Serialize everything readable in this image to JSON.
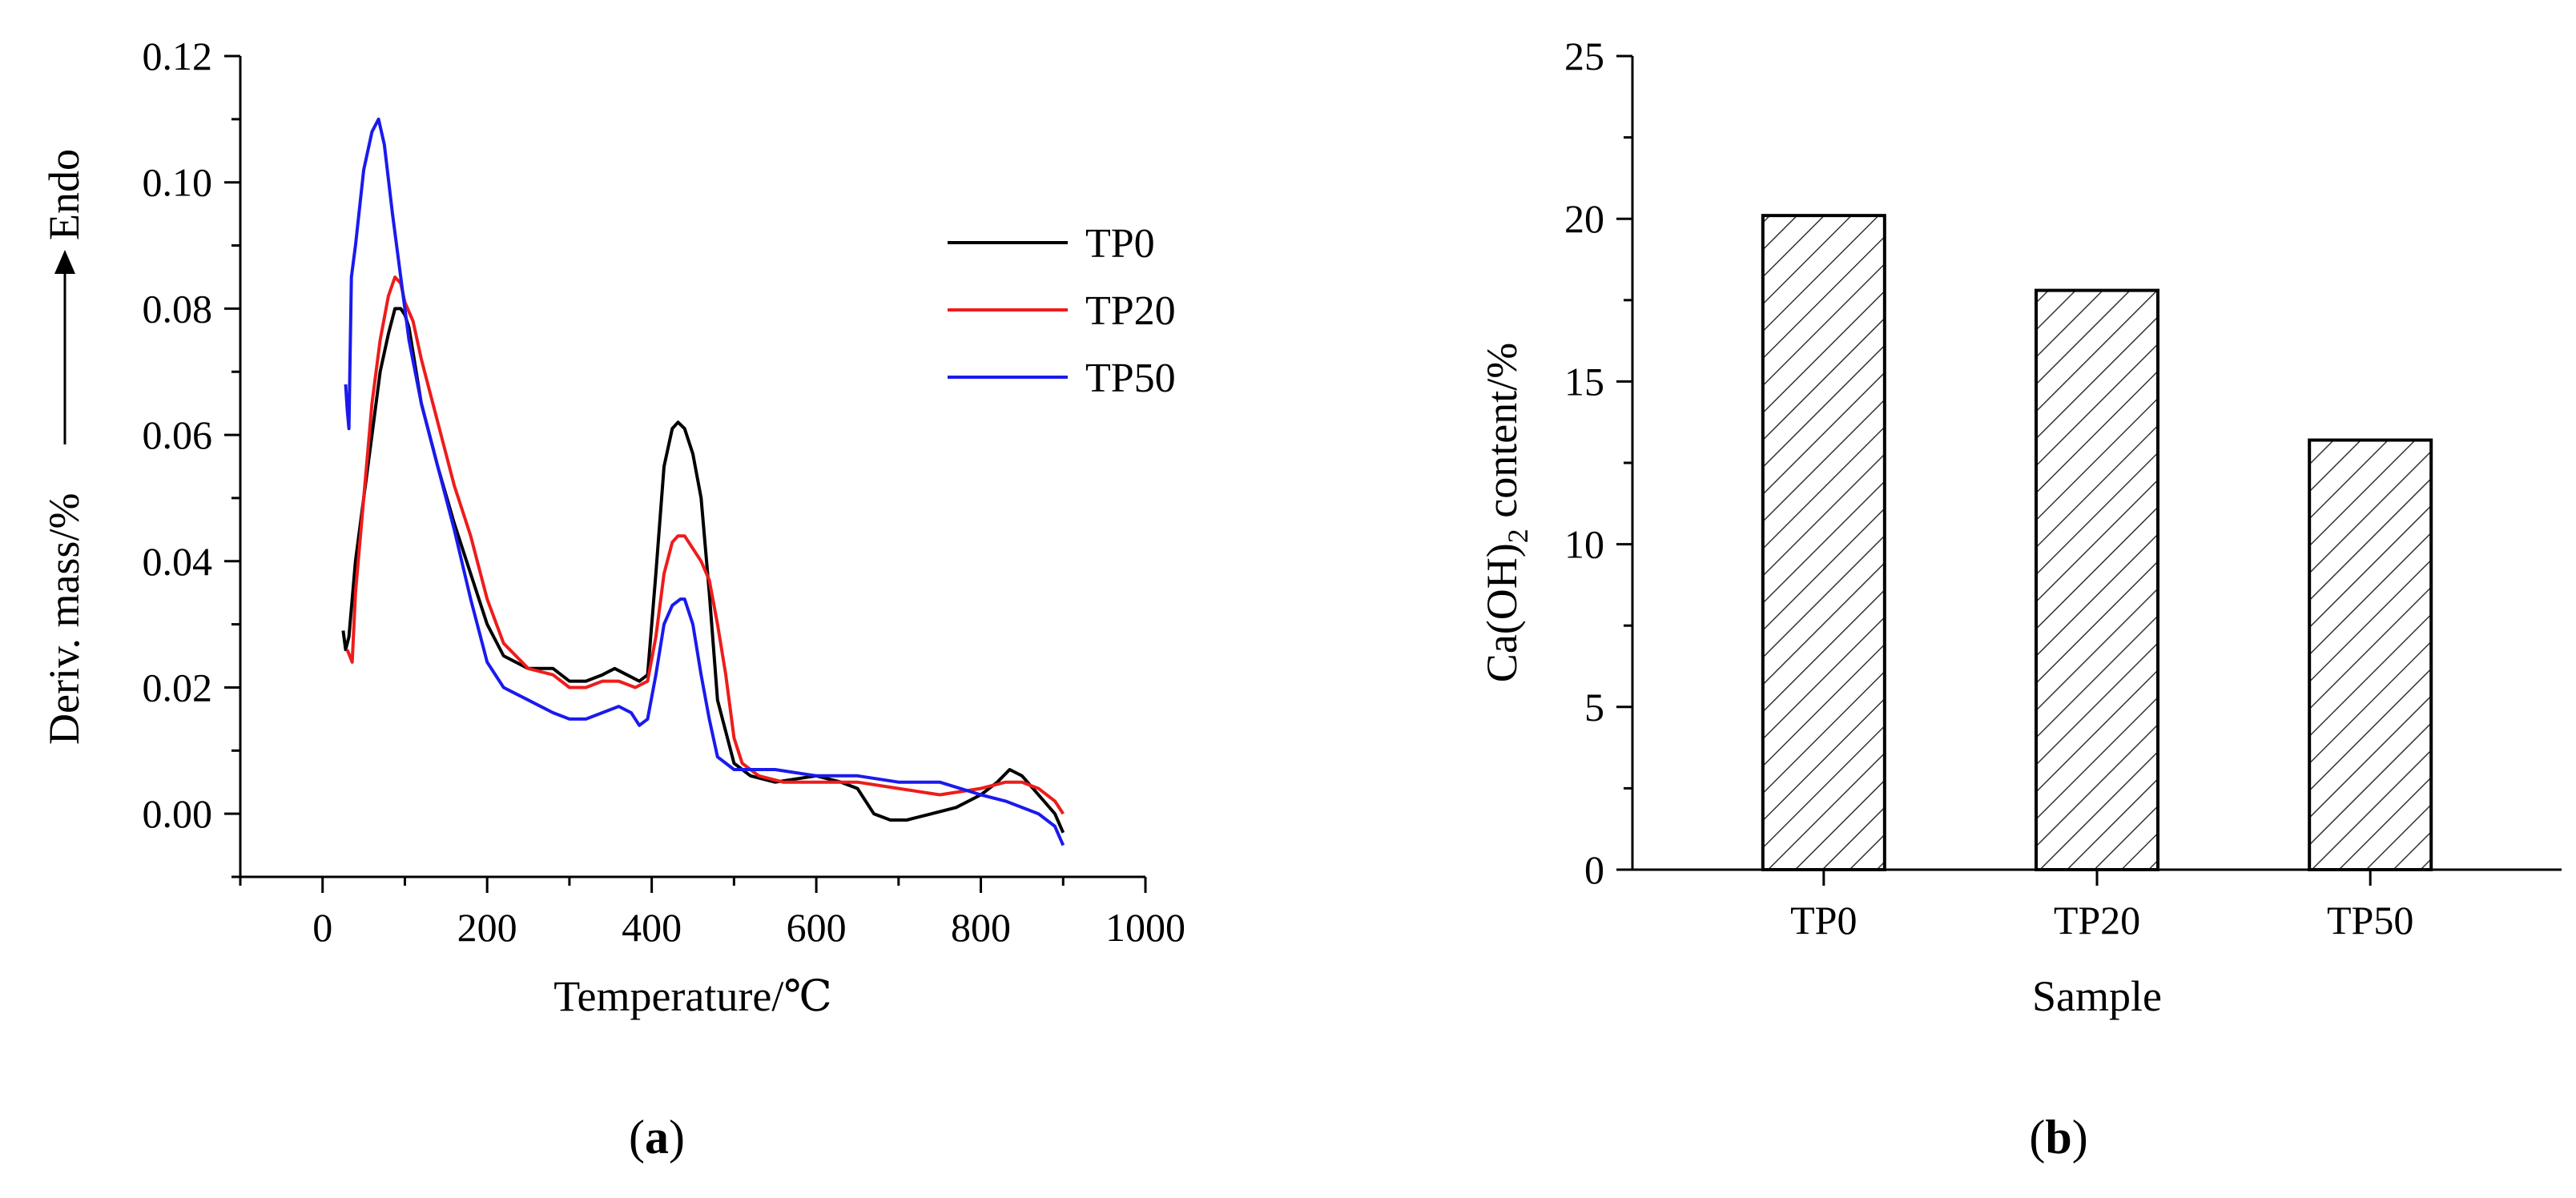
{
  "chart_data": [
    {
      "type": "line",
      "panel_label": "(a)",
      "panel_letter": "a",
      "xlabel": "Temperature/℃",
      "ylabel": "Deriv. mass/%",
      "ylabel_suffix": "Endo",
      "xlim": [
        -100,
        1000
      ],
      "ylim": [
        -0.01,
        0.12
      ],
      "xticks": [
        0,
        200,
        400,
        600,
        800,
        1000
      ],
      "xtick_labels": [
        "0",
        "200",
        "400",
        "600",
        "800",
        "1000"
      ],
      "yticks": [
        0.0,
        0.02,
        0.04,
        0.06,
        0.08,
        0.1,
        0.12
      ],
      "ytick_labels": [
        "0.00",
        "0.02",
        "0.04",
        "0.06",
        "0.08",
        "0.10",
        "0.12"
      ],
      "grid": false,
      "legend_position": "top-right",
      "series": [
        {
          "name": "TP0",
          "color": "#000000",
          "x": [
            25,
            28,
            32,
            40,
            50,
            60,
            70,
            80,
            88,
            95,
            100,
            105,
            120,
            140,
            160,
            180,
            200,
            220,
            250,
            280,
            300,
            320,
            340,
            355,
            370,
            385,
            395,
            405,
            415,
            425,
            432,
            440,
            450,
            460,
            470,
            480,
            500,
            520,
            550,
            600,
            630,
            650,
            670,
            690,
            710,
            740,
            770,
            800,
            820,
            835,
            850,
            870,
            890,
            900
          ],
          "y": [
            0.029,
            0.026,
            0.028,
            0.04,
            0.05,
            0.06,
            0.07,
            0.076,
            0.08,
            0.08,
            0.079,
            0.077,
            0.065,
            0.055,
            0.046,
            0.038,
            0.03,
            0.025,
            0.023,
            0.023,
            0.021,
            0.021,
            0.022,
            0.023,
            0.022,
            0.021,
            0.022,
            0.038,
            0.055,
            0.061,
            0.062,
            0.061,
            0.057,
            0.05,
            0.035,
            0.018,
            0.008,
            0.006,
            0.005,
            0.006,
            0.005,
            0.004,
            0.0,
            -0.001,
            -0.001,
            0.0,
            0.001,
            0.003,
            0.005,
            0.007,
            0.006,
            0.003,
            0.0,
            -0.003
          ]
        },
        {
          "name": "TP20",
          "color": "#ee1c1c",
          "x": [
            30,
            33,
            36,
            40,
            50,
            60,
            70,
            80,
            88,
            95,
            100,
            110,
            120,
            140,
            160,
            180,
            200,
            220,
            250,
            280,
            300,
            320,
            340,
            360,
            380,
            395,
            405,
            415,
            425,
            432,
            440,
            450,
            460,
            470,
            480,
            490,
            500,
            510,
            530,
            560,
            600,
            650,
            700,
            750,
            800,
            830,
            850,
            870,
            890,
            900
          ],
          "y": [
            0.026,
            0.025,
            0.024,
            0.035,
            0.05,
            0.065,
            0.075,
            0.082,
            0.085,
            0.084,
            0.081,
            0.078,
            0.072,
            0.062,
            0.052,
            0.044,
            0.034,
            0.027,
            0.023,
            0.022,
            0.02,
            0.02,
            0.021,
            0.021,
            0.02,
            0.021,
            0.028,
            0.038,
            0.043,
            0.044,
            0.044,
            0.042,
            0.04,
            0.037,
            0.03,
            0.022,
            0.012,
            0.008,
            0.006,
            0.005,
            0.005,
            0.005,
            0.004,
            0.003,
            0.004,
            0.005,
            0.005,
            0.004,
            0.002,
            0.0
          ]
        },
        {
          "name": "TP50",
          "color": "#1a1aee",
          "x": [
            28,
            30,
            32,
            35,
            40,
            50,
            60,
            68,
            75,
            85,
            95,
            105,
            120,
            140,
            160,
            180,
            200,
            220,
            250,
            280,
            300,
            320,
            340,
            360,
            375,
            385,
            395,
            405,
            415,
            425,
            435,
            440,
            450,
            460,
            470,
            480,
            500,
            550,
            600,
            650,
            700,
            750,
            800,
            830,
            850,
            870,
            890,
            900
          ],
          "y": [
            0.068,
            0.064,
            0.061,
            0.085,
            0.09,
            0.102,
            0.108,
            0.11,
            0.106,
            0.095,
            0.085,
            0.075,
            0.065,
            0.055,
            0.045,
            0.034,
            0.024,
            0.02,
            0.018,
            0.016,
            0.015,
            0.015,
            0.016,
            0.017,
            0.016,
            0.014,
            0.015,
            0.022,
            0.03,
            0.033,
            0.034,
            0.034,
            0.03,
            0.022,
            0.015,
            0.009,
            0.007,
            0.007,
            0.006,
            0.006,
            0.005,
            0.005,
            0.003,
            0.002,
            0.001,
            0.0,
            -0.002,
            -0.005
          ]
        }
      ]
    },
    {
      "type": "bar",
      "panel_label": "(b)",
      "panel_letter": "b",
      "xlabel": "Sample",
      "ylabel_parts": [
        "Ca(OH)",
        "2",
        " content/%"
      ],
      "categories": [
        "TP0",
        "TP20",
        "TP50"
      ],
      "values": [
        20.1,
        17.8,
        13.2
      ],
      "ylim": [
        0,
        25
      ],
      "yticks": [
        0,
        5,
        10,
        15,
        20,
        25
      ],
      "ytick_labels": [
        "0",
        "5",
        "10",
        "15",
        "20",
        "25"
      ],
      "grid": false,
      "fill_pattern": "diagonal-hatch"
    }
  ]
}
